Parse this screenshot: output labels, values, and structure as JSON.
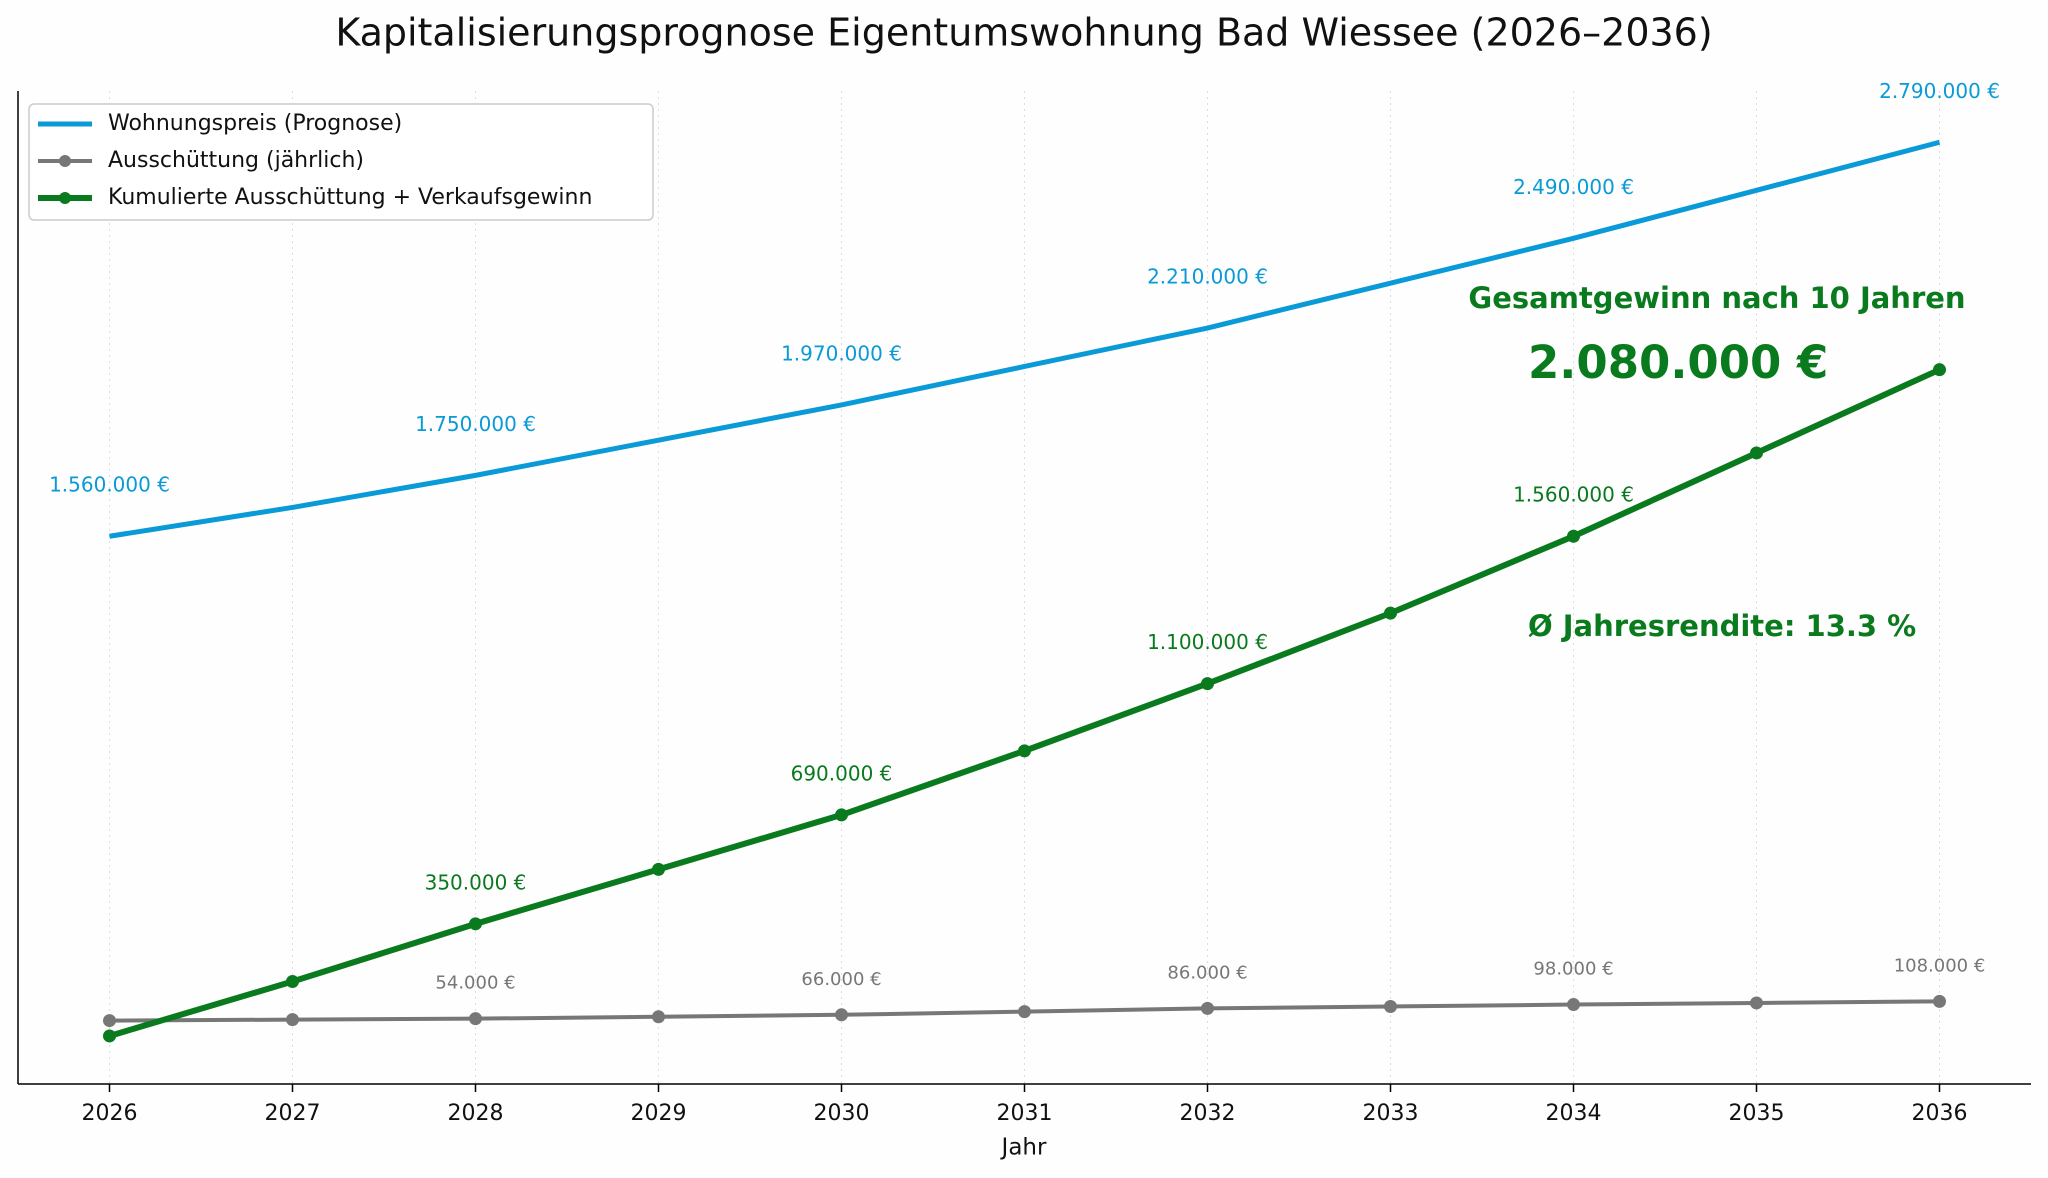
{
  "chart_data": {
    "type": "line",
    "title": "Kapitalisierungsprognose Eigentumswohnung Bad Wiessee (2026–2036)",
    "x_label": "Jahr",
    "x": [
      2026,
      2027,
      2028,
      2029,
      2030,
      2031,
      2032,
      2033,
      2034,
      2035,
      2036
    ],
    "xlim": [
      2025.5,
      2036.5
    ],
    "xticks": [
      2026,
      2027,
      2028,
      2029,
      2030,
      2031,
      2032,
      2033,
      2034,
      2035,
      2036
    ],
    "ylim": [
      -150000,
      2950000
    ],
    "grid": true,
    "legend": "upper left",
    "series": [
      {
        "name": "Wohnungspreis (Prognose)",
        "color": "#0a9ad8",
        "markers": false,
        "values": [
          1560000,
          1650000,
          1750000,
          1860000,
          1970000,
          2090000,
          2210000,
          2350000,
          2490000,
          2640000,
          2790000
        ],
        "value_labels": [
          "1.560.000 €",
          null,
          "1.750.000 €",
          null,
          "1.970.000 €",
          null,
          "2.210.000 €",
          null,
          "2.490.000 €",
          null,
          "2.790.000 €"
        ]
      },
      {
        "name": "Ausschüttung (jährlich)",
        "color": "#777777",
        "markers": true,
        "values": [
          48000,
          51000,
          54000,
          60000,
          66000,
          76000,
          86000,
          92000,
          98000,
          103000,
          108000
        ],
        "value_labels": [
          null,
          null,
          "54.000 €",
          null,
          "66.000 €",
          null,
          "86.000 €",
          null,
          "98.000 €",
          null,
          "108.000 €"
        ]
      },
      {
        "name": "Kumulierte Ausschüttung + Verkaufsgewinn",
        "color": "#0a7a1e",
        "markers": true,
        "values": [
          0,
          170000,
          350000,
          520000,
          690000,
          890000,
          1100000,
          1320000,
          1560000,
          1820000,
          2080000
        ],
        "value_labels": [
          null,
          null,
          "350.000 €",
          null,
          "690.000 €",
          null,
          "1.100.000 €",
          null,
          "1.560.000 €",
          null,
          null
        ]
      }
    ],
    "annotations": [
      "Gesamtgewinn nach 10 Jahren",
      "2.080.000 €",
      "Ø Jahresrendite: 13.3 %"
    ]
  }
}
